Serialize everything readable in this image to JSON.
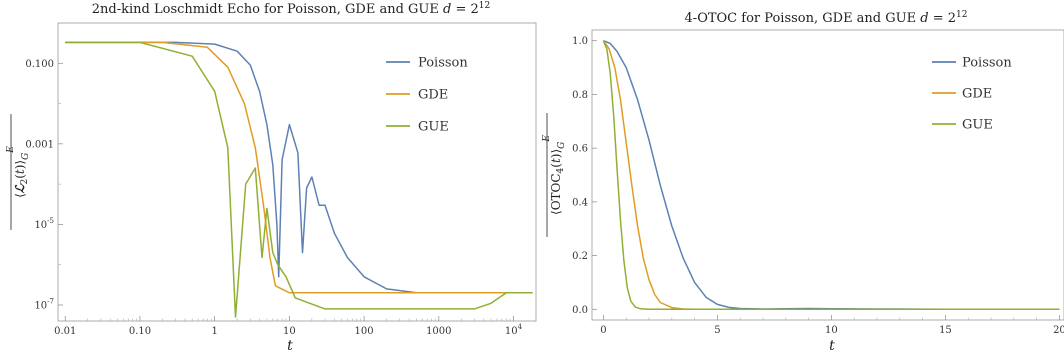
{
  "chart_data": [
    {
      "type": "line",
      "title": "2nd-kind Loschmidt Echo for Poisson, GDE and GUE d = 2^12",
      "xlabel": "t",
      "ylabel": "overline(⟨ℒ2(t)⟩G)^E",
      "xscale": "log",
      "yscale": "log",
      "xlim": [
        0.008,
        20000
      ],
      "ylim": [
        4e-08,
        1.0
      ],
      "x_tick_labels": [
        "0.01",
        "0.10",
        "1",
        "10",
        "100",
        "1000",
        "10^4"
      ],
      "y_tick_labels": [
        "0.100",
        "0.001",
        "10^-5",
        "10^-7"
      ],
      "legend": "top-right",
      "series": [
        {
          "name": "Poisson",
          "color": "#5e81b5",
          "points": [
            [
              0.01,
              0.33
            ],
            [
              0.3,
              0.33
            ],
            [
              1,
              0.3
            ],
            [
              2,
              0.2
            ],
            [
              3,
              0.09
            ],
            [
              4,
              0.02
            ],
            [
              5,
              0.003
            ],
            [
              6,
              0.0003
            ],
            [
              6.8,
              1e-05
            ],
            [
              7.2,
              5e-07
            ],
            [
              8,
              0.0004
            ],
            [
              10,
              0.003
            ],
            [
              13,
              0.0006
            ],
            [
              15,
              2e-06
            ],
            [
              17,
              8e-05
            ],
            [
              20,
              0.00015
            ],
            [
              25,
              3e-05
            ],
            [
              30,
              3e-05
            ],
            [
              40,
              6e-06
            ],
            [
              60,
              1.5e-06
            ],
            [
              100,
              5e-07
            ],
            [
              200,
              2.5e-07
            ],
            [
              500,
              2e-07
            ],
            [
              18000,
              2e-07
            ]
          ]
        },
        {
          "name": "GDE",
          "color": "#e19c24",
          "points": [
            [
              0.01,
              0.33
            ],
            [
              0.2,
              0.33
            ],
            [
              0.8,
              0.25
            ],
            [
              1.5,
              0.08
            ],
            [
              2.5,
              0.01
            ],
            [
              3.5,
              0.0008
            ],
            [
              4.5,
              3e-05
            ],
            [
              5.5,
              1.5e-06
            ],
            [
              6.5,
              3e-07
            ],
            [
              10,
              2e-07
            ],
            [
              18000,
              2e-07
            ]
          ]
        },
        {
          "name": "GUE",
          "color": "#8fb032",
          "points": [
            [
              0.01,
              0.33
            ],
            [
              0.1,
              0.33
            ],
            [
              0.5,
              0.15
            ],
            [
              1.0,
              0.02
            ],
            [
              1.5,
              0.0008
            ],
            [
              1.9,
              5e-08
            ],
            [
              2.6,
              0.0001
            ],
            [
              3.5,
              0.00025
            ],
            [
              4.3,
              1.5e-06
            ],
            [
              5,
              2.5e-05
            ],
            [
              6,
              2e-06
            ],
            [
              7,
              1e-06
            ],
            [
              9,
              5e-07
            ],
            [
              12,
              1.5e-07
            ],
            [
              30,
              8e-08
            ],
            [
              1000,
              8e-08
            ],
            [
              3000,
              8e-08
            ],
            [
              5000,
              1.1e-07
            ],
            [
              8000,
              2e-07
            ],
            [
              18000,
              2e-07
            ]
          ]
        }
      ]
    },
    {
      "type": "line",
      "title": "4-OTOC for Poisson, GDE and GUE d = 2^12",
      "xlabel": "t",
      "ylabel": "overline(⟨OTOC4(t)⟩G)^E",
      "xlim": [
        -0.5,
        20.2
      ],
      "ylim": [
        -0.04,
        1.04
      ],
      "x_ticks": [
        0,
        5,
        10,
        15,
        20
      ],
      "y_ticks": [
        0.0,
        0.2,
        0.4,
        0.6,
        0.8,
        1.0
      ],
      "x_tick_labels": [
        "0",
        "5",
        "10",
        "15",
        "20"
      ],
      "y_tick_labels": [
        "0.0",
        "0.2",
        "0.4",
        "0.6",
        "0.8",
        "1.0"
      ],
      "legend": "top-right",
      "series": [
        {
          "name": "Poisson",
          "color": "#5e81b5",
          "points": [
            [
              0,
              1.0
            ],
            [
              0.3,
              0.99
            ],
            [
              0.6,
              0.96
            ],
            [
              1.0,
              0.9
            ],
            [
              1.5,
              0.78
            ],
            [
              2.0,
              0.63
            ],
            [
              2.5,
              0.46
            ],
            [
              3.0,
              0.31
            ],
            [
              3.5,
              0.19
            ],
            [
              4.0,
              0.1
            ],
            [
              4.5,
              0.045
            ],
            [
              5.0,
              0.018
            ],
            [
              5.5,
              0.007
            ],
            [
              6.0,
              0.003
            ],
            [
              7.0,
              0.001
            ],
            [
              8.0,
              0.002
            ],
            [
              9.0,
              0.003
            ],
            [
              10.0,
              0.002
            ],
            [
              12.0,
              0.001
            ],
            [
              15.0,
              0.0
            ],
            [
              20.0,
              0.0
            ]
          ]
        },
        {
          "name": "GDE",
          "color": "#e19c24",
          "points": [
            [
              0,
              1.0
            ],
            [
              0.25,
              0.97
            ],
            [
              0.5,
              0.9
            ],
            [
              0.75,
              0.78
            ],
            [
              1.0,
              0.62
            ],
            [
              1.25,
              0.46
            ],
            [
              1.5,
              0.31
            ],
            [
              1.75,
              0.19
            ],
            [
              2.0,
              0.11
            ],
            [
              2.25,
              0.055
            ],
            [
              2.5,
              0.025
            ],
            [
              3.0,
              0.006
            ],
            [
              3.5,
              0.001
            ],
            [
              4.0,
              0.0
            ],
            [
              20.0,
              0.0
            ]
          ]
        },
        {
          "name": "GUE",
          "color": "#8fb032",
          "points": [
            [
              0,
              1.0
            ],
            [
              0.15,
              0.97
            ],
            [
              0.3,
              0.88
            ],
            [
              0.45,
              0.72
            ],
            [
              0.6,
              0.52
            ],
            [
              0.75,
              0.33
            ],
            [
              0.9,
              0.18
            ],
            [
              1.05,
              0.08
            ],
            [
              1.2,
              0.03
            ],
            [
              1.4,
              0.008
            ],
            [
              1.6,
              0.002
            ],
            [
              2.0,
              0.0
            ],
            [
              20.0,
              0.0
            ]
          ]
        }
      ]
    }
  ]
}
